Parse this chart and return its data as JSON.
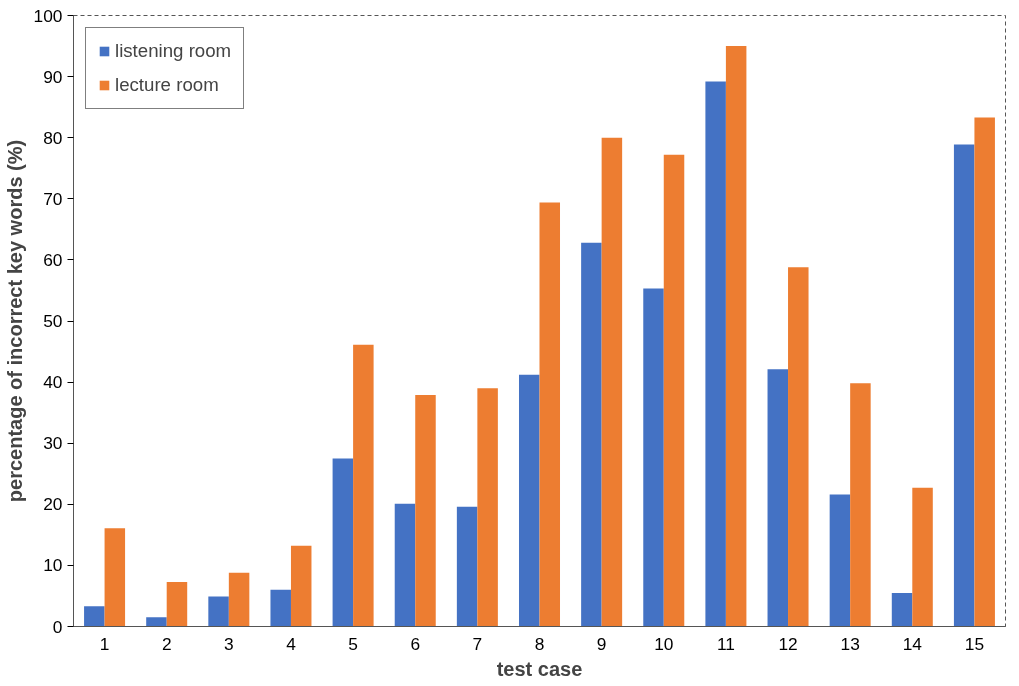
{
  "chart_data": {
    "type": "bar",
    "xlabel": "test case",
    "ylabel": "percentage of incorrect key words (%)",
    "x": [
      1,
      2,
      3,
      4,
      5,
      6,
      7,
      8,
      9,
      10,
      11,
      12,
      13,
      14,
      15
    ],
    "xlim": [
      0.5,
      15.5
    ],
    "xticks": [
      1,
      2,
      3,
      4,
      5,
      6,
      7,
      8,
      9,
      10,
      11,
      12,
      13,
      14,
      15
    ],
    "series": [
      {
        "name": "listening room",
        "color": "#4472c4",
        "values": [
          3.3,
          1.5,
          4.9,
          6.0,
          27.5,
          20.1,
          19.6,
          41.2,
          62.8,
          55.3,
          89.2,
          42.1,
          21.6,
          5.5,
          78.9
        ]
      },
      {
        "name": "lecture room",
        "color": "#ed7d31",
        "values": [
          16.1,
          7.3,
          8.8,
          13.2,
          46.1,
          37.9,
          39.0,
          69.4,
          80.0,
          77.2,
          95.0,
          58.8,
          39.8,
          22.7,
          83.3
        ]
      }
    ],
    "ylim": [
      0,
      100
    ],
    "yticks": [
      0,
      10,
      20,
      30,
      40,
      50,
      60,
      70,
      80,
      90,
      100
    ],
    "grid": false,
    "legend": "top left"
  }
}
